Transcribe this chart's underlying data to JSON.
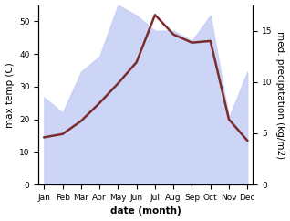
{
  "months": [
    "Jan",
    "Feb",
    "Mar",
    "Apr",
    "May",
    "Jun",
    "Jul",
    "Aug",
    "Sep",
    "Oct",
    "Nov",
    "Dec"
  ],
  "temp": [
    14.5,
    15.5,
    19.5,
    25.0,
    31.0,
    37.5,
    52.0,
    46.0,
    43.5,
    44.0,
    20.0,
    13.5
  ],
  "precip": [
    8.5,
    7.0,
    11.0,
    12.5,
    17.5,
    16.5,
    15.0,
    15.0,
    14.0,
    16.5,
    6.5,
    11.0
  ],
  "temp_color": "#7B2D2D",
  "precip_fill_color": "#c5cef5",
  "precip_fill_alpha": 0.85,
  "background_color": "#ffffff",
  "ylabel_left": "max temp (C)",
  "ylabel_right": "med. precipitation (kg/m2)",
  "xlabel": "date (month)",
  "ylim_left": [
    0,
    55
  ],
  "ylim_right": [
    0,
    17.5
  ],
  "yticks_left": [
    0,
    10,
    20,
    30,
    40,
    50
  ],
  "yticks_right": [
    0,
    5,
    10,
    15
  ],
  "label_fontsize": 7.5,
  "tick_fontsize": 6.5,
  "linewidth": 1.8
}
